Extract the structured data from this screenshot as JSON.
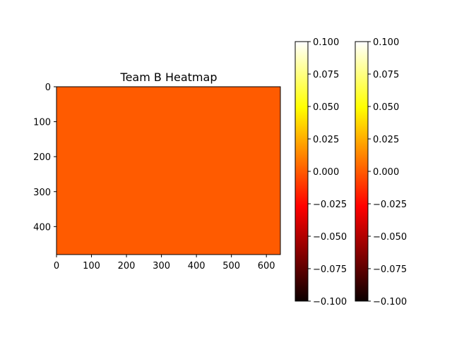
{
  "chart_data": {
    "type": "heatmap",
    "title": "Team B Heatmap",
    "xlabel": "",
    "ylabel": "",
    "xlim": [
      0,
      640
    ],
    "ylim": [
      480,
      0
    ],
    "xticks": [
      0,
      100,
      200,
      300,
      400,
      500,
      600
    ],
    "yticks": [
      0,
      100,
      200,
      300,
      400
    ],
    "colormap": "hot",
    "values": [
      [
        0
      ]
    ],
    "cell_color": "#ff5b00",
    "colorbars": [
      {
        "range": [
          -0.1,
          0.1
        ],
        "ticks": [
          "0.100",
          "0.075",
          "0.050",
          "0.025",
          "0.000",
          "−0.025",
          "−0.050",
          "−0.075",
          "−0.100"
        ]
      },
      {
        "range": [
          -0.1,
          0.1
        ],
        "ticks": [
          "0.100",
          "0.075",
          "0.050",
          "0.025",
          "0.000",
          "−0.025",
          "−0.050",
          "−0.075",
          "−0.100"
        ]
      }
    ],
    "grid": false
  }
}
